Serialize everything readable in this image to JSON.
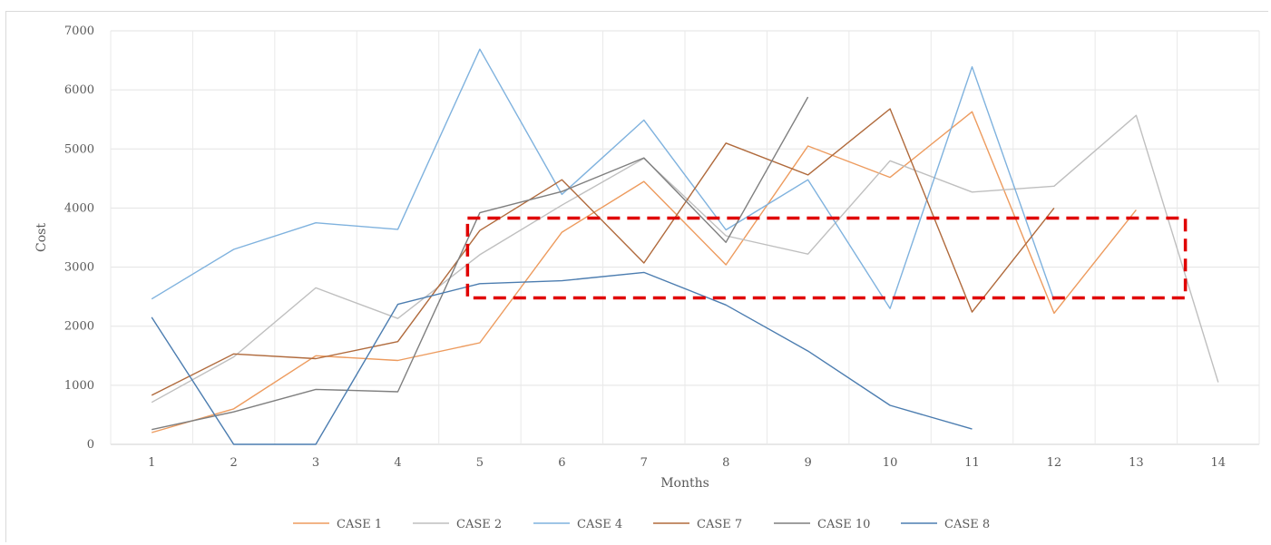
{
  "chart_data": {
    "type": "line",
    "title": "",
    "xlabel": "Months",
    "ylabel": "Cost",
    "categories": [
      "1",
      "2",
      "3",
      "4",
      "5",
      "6",
      "7",
      "8",
      "9",
      "10",
      "11",
      "12",
      "13",
      "14"
    ],
    "ylim": [
      0,
      7000
    ],
    "yticks": [
      "0",
      "1000",
      "2000",
      "3000",
      "4000",
      "5000",
      "6000",
      "7000"
    ],
    "grid": true,
    "legend_position": "bottom",
    "series": [
      {
        "name": "CASE 1",
        "color": "#ED9B5E",
        "values": [
          200,
          600,
          1500,
          1420,
          1720,
          3590,
          4450,
          3040,
          5050,
          4520,
          5630,
          2220,
          3970,
          null
        ]
      },
      {
        "name": "CASE 2",
        "color": "#BFBFBF",
        "values": [
          710,
          1480,
          2650,
          2130,
          3210,
          4050,
          4840,
          3530,
          3220,
          4800,
          4270,
          4370,
          5570,
          1050
        ]
      },
      {
        "name": "CASE 4",
        "color": "#7FB2DE",
        "values": [
          2460,
          3300,
          3750,
          3640,
          6690,
          4230,
          5490,
          3630,
          4480,
          2300,
          6390,
          2440,
          null,
          null
        ]
      },
      {
        "name": "CASE 7",
        "color": "#B06A3C",
        "values": [
          830,
          1530,
          1450,
          1740,
          3620,
          4480,
          3070,
          5100,
          4560,
          5680,
          2240,
          4000,
          null,
          null
        ]
      },
      {
        "name": "CASE 10",
        "color": "#7F7F7F",
        "values": [
          250,
          550,
          930,
          890,
          3920,
          4280,
          4850,
          3420,
          5880,
          null,
          null,
          null,
          null,
          null
        ]
      },
      {
        "name": "CASE 8",
        "color": "#4C7DB0",
        "values": [
          2150,
          0,
          0,
          2370,
          2720,
          2770,
          2910,
          2360,
          1580,
          660,
          260,
          null,
          null,
          null
        ]
      }
    ],
    "annotation": {
      "shape": "dashed-rectangle",
      "color": "#E00000",
      "x_range": [
        4.85,
        13.6
      ],
      "y_range": [
        2480,
        3830
      ]
    }
  }
}
